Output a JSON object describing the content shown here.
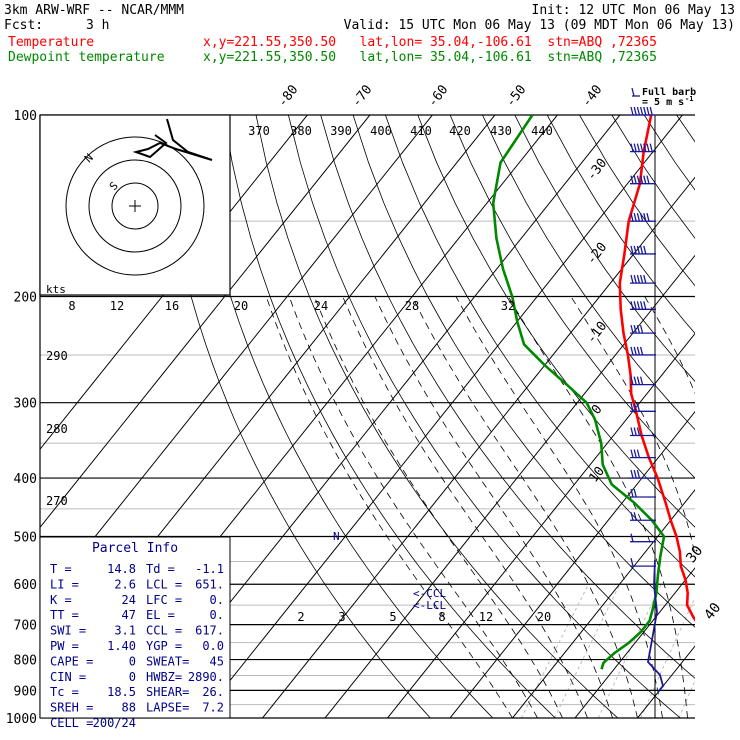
{
  "header": {
    "model": "3km ARW-WRF -- NCAR/MMM",
    "init": "Init: 12 UTC Mon 06 May 13",
    "fcst_label": "Fcst:",
    "fcst_value": "3 h",
    "valid": "Valid: 15 UTC Mon 06 May 13 (09 MDT Mon 06 May 13)",
    "temp_label": "Temperature",
    "temp_info": "x,y=221.55,350.50   lat,lon= 35.04,-106.61  stn=ABQ ,72365",
    "dew_label": "Dewpoint temperature",
    "dew_info": "x,y=221.55,350.50   lat,lon= 35.04,-106.61  stn=ABQ ,72365"
  },
  "colors": {
    "temperature": "#ff0000",
    "dewpoint": "#008800",
    "grid": "#000000",
    "isopleth_gray": "#bbbbbb",
    "parcel_text": "#000088",
    "barb": "#1a1a99"
  },
  "wind_legend": {
    "line1": "Full barb",
    "line2": "= 5 m s",
    "sup": "-1"
  },
  "hodograph": {
    "units": "kts",
    "speed_labels": [
      "8",
      "12",
      "16",
      "20",
      "24",
      "28",
      "32"
    ],
    "ring_labels": [
      "N",
      "S"
    ],
    "top_labels": [
      "370",
      "380",
      "390",
      "400",
      "410",
      "420",
      "430",
      "440"
    ]
  },
  "isotherm_labels": {
    "top": [
      "-80",
      "-70",
      "-60",
      "-50",
      "-40"
    ],
    "right": [
      "-30",
      "-20",
      "-10",
      "0",
      "10"
    ],
    "bottom_right": [
      "30",
      "40"
    ]
  },
  "theta_labels": [
    "290",
    "280",
    "270"
  ],
  "mixing_ratio_labels": [
    "2",
    "3",
    "5",
    "8",
    "12",
    "20"
  ],
  "level_labels": {
    "ccl": "<-CCL",
    "lcl": "<-LCL",
    "marker": "N"
  },
  "parcel_info": {
    "title": "Parcel Info",
    "rows": [
      [
        "T  =",
        "14.8",
        "Td =",
        "-1.1"
      ],
      [
        "LI =",
        "2.6",
        "LCL =",
        "651."
      ],
      [
        "K  =",
        "24",
        "LFC =",
        "0."
      ],
      [
        "TT =",
        "47",
        "EL =",
        "0."
      ],
      [
        "SWI =",
        "3.1",
        "CCL =",
        "617."
      ],
      [
        "PW =",
        "1.40",
        "YGP =",
        "0.0"
      ],
      [
        "CAPE =",
        "0",
        "SWEAT=",
        "45"
      ],
      [
        "CIN =",
        "0",
        "HWBZ=",
        "2890."
      ],
      [
        "Tc =",
        "18.5",
        "SHEAR=",
        "26."
      ],
      [
        "SREH =",
        "88",
        "LAPSE=",
        "7.2"
      ],
      [
        "CELL =",
        "200/24",
        "",
        ""
      ]
    ]
  },
  "chart_data": {
    "type": "line",
    "diagram": "skew-T log-p",
    "pressure_axis": {
      "scale": "log",
      "range": [
        1000,
        100
      ],
      "tick_labels": [
        "100",
        "200",
        "300",
        "400",
        "500",
        "600",
        "700",
        "800",
        "900",
        "1000"
      ]
    },
    "series": [
      {
        "name": "Temperature",
        "color": "#ff0000",
        "points": [
          {
            "p": 830,
            "t": 15.5
          },
          {
            "p": 800,
            "t": 12.5
          },
          {
            "p": 760,
            "t": 10.5
          },
          {
            "p": 720,
            "t": 9.5
          },
          {
            "p": 680,
            "t": 6.0
          },
          {
            "p": 650,
            "t": 3.5
          },
          {
            "p": 620,
            "t": 2.0
          },
          {
            "p": 590,
            "t": 0.0
          },
          {
            "p": 560,
            "t": -2.5
          },
          {
            "p": 530,
            "t": -4.5
          },
          {
            "p": 500,
            "t": -7.0
          },
          {
            "p": 470,
            "t": -10.0
          },
          {
            "p": 440,
            "t": -13.0
          },
          {
            "p": 400,
            "t": -17.5
          },
          {
            "p": 370,
            "t": -21.5
          },
          {
            "p": 340,
            "t": -25.5
          },
          {
            "p": 310,
            "t": -29.5
          },
          {
            "p": 290,
            "t": -32.5
          },
          {
            "p": 270,
            "t": -35.0
          },
          {
            "p": 250,
            "t": -38.0
          },
          {
            "p": 230,
            "t": -41.5
          },
          {
            "p": 210,
            "t": -45.0
          },
          {
            "p": 190,
            "t": -48.5
          },
          {
            "p": 170,
            "t": -51.5
          },
          {
            "p": 150,
            "t": -55.0
          },
          {
            "p": 130,
            "t": -58.0
          },
          {
            "p": 115,
            "t": -61.5
          },
          {
            "p": 100,
            "t": -65.0
          }
        ]
      },
      {
        "name": "Dewpoint temperature",
        "color": "#008800",
        "points": [
          {
            "p": 830,
            "t": -2.0
          },
          {
            "p": 810,
            "t": -2.5
          },
          {
            "p": 780,
            "t": -2.0
          },
          {
            "p": 750,
            "t": -1.0
          },
          {
            "p": 720,
            "t": -0.5
          },
          {
            "p": 690,
            "t": -0.5
          },
          {
            "p": 660,
            "t": -1.5
          },
          {
            "p": 620,
            "t": -3.0
          },
          {
            "p": 580,
            "t": -5.0
          },
          {
            "p": 540,
            "t": -7.0
          },
          {
            "p": 500,
            "t": -9.0
          },
          {
            "p": 470,
            "t": -13.0
          },
          {
            "p": 440,
            "t": -18.0
          },
          {
            "p": 410,
            "t": -24.0
          },
          {
            "p": 380,
            "t": -28.0
          },
          {
            "p": 350,
            "t": -31.0
          },
          {
            "p": 320,
            "t": -35.0
          },
          {
            "p": 300,
            "t": -38.5
          },
          {
            "p": 280,
            "t": -44.0
          },
          {
            "p": 260,
            "t": -50.0
          },
          {
            "p": 240,
            "t": -56.0
          },
          {
            "p": 220,
            "t": -60.0
          },
          {
            "p": 200,
            "t": -64.0
          },
          {
            "p": 180,
            "t": -69.0
          },
          {
            "p": 160,
            "t": -74.0
          },
          {
            "p": 140,
            "t": -79.0
          },
          {
            "p": 120,
            "t": -83.0
          },
          {
            "p": 100,
            "t": -84.0
          }
        ]
      }
    ],
    "hodograph_trace": [
      [
        167,
        119
      ],
      [
        173,
        140
      ],
      [
        188,
        152
      ],
      [
        212,
        160
      ],
      [
        176,
        149
      ],
      [
        160,
        143
      ],
      [
        148,
        149
      ],
      [
        136,
        152
      ],
      [
        150,
        157
      ],
      [
        157,
        151
      ],
      [
        166,
        143
      ],
      [
        155,
        135
      ]
    ],
    "wind_profile": [
      {
        "p": 100,
        "spd": 35,
        "dir": 260
      },
      {
        "p": 115,
        "spd": 35,
        "dir": 260
      },
      {
        "p": 130,
        "spd": 30,
        "dir": 260
      },
      {
        "p": 150,
        "spd": 30,
        "dir": 260
      },
      {
        "p": 170,
        "spd": 25,
        "dir": 255
      },
      {
        "p": 190,
        "spd": 25,
        "dir": 255
      },
      {
        "p": 210,
        "spd": 25,
        "dir": 255
      },
      {
        "p": 230,
        "spd": 20,
        "dir": 250
      },
      {
        "p": 250,
        "spd": 20,
        "dir": 250
      },
      {
        "p": 280,
        "spd": 20,
        "dir": 250
      },
      {
        "p": 310,
        "spd": 15,
        "dir": 250
      },
      {
        "p": 340,
        "spd": 15,
        "dir": 245
      },
      {
        "p": 370,
        "spd": 15,
        "dir": 245
      },
      {
        "p": 400,
        "spd": 15,
        "dir": 245
      },
      {
        "p": 430,
        "spd": 10,
        "dir": 240
      },
      {
        "p": 470,
        "spd": 10,
        "dir": 240
      },
      {
        "p": 510,
        "spd": 5,
        "dir": 230
      },
      {
        "p": 560,
        "spd": 5,
        "dir": 220
      }
    ]
  }
}
